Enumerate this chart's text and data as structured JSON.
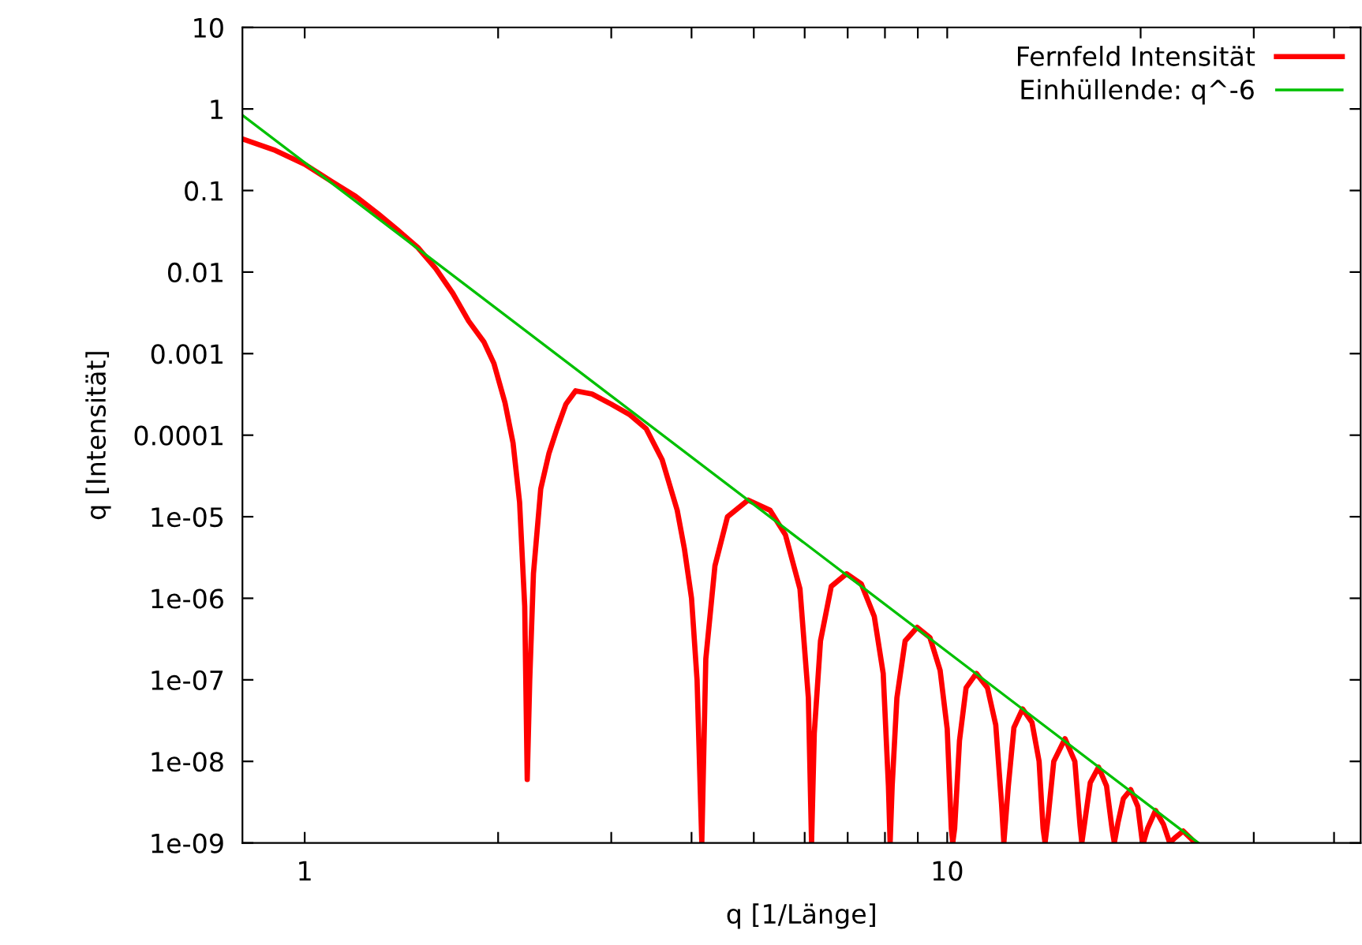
{
  "chart_data": {
    "type": "line",
    "xlabel": "q [1/Länge]",
    "ylabel": "q [Intensität]",
    "log": "xy",
    "grid": false,
    "legend": "top right",
    "marker": "none",
    "line_style": "solid",
    "xlim": [
      0.8,
      44
    ],
    "ylim": [
      1e-09,
      10
    ],
    "xticks": [
      1,
      {
        "value": 2,
        "label": null
      },
      {
        "value": 3,
        "label": null
      },
      {
        "value": 4,
        "label": null
      },
      {
        "value": 5,
        "label": null
      },
      {
        "value": 6,
        "label": null
      },
      {
        "value": 7,
        "label": null
      },
      {
        "value": 8,
        "label": null
      },
      {
        "value": 9,
        "label": null
      },
      10,
      {
        "value": 20,
        "label": null
      },
      {
        "value": 30,
        "label": null
      },
      {
        "value": 40,
        "label": null
      }
    ],
    "yticks": [
      {
        "value": 1e-09,
        "label": "1e-09"
      },
      {
        "value": 1e-08,
        "label": "1e-08"
      },
      {
        "value": 1e-07,
        "label": "1e-07"
      },
      {
        "value": 1e-06,
        "label": "1e-06"
      },
      {
        "value": 1e-05,
        "label": "1e-05"
      },
      0.0001,
      0.001,
      0.01,
      0.1,
      1,
      10
    ],
    "series": [
      {
        "name": "Fernfeld Intensität",
        "color": "#ff0000",
        "x": [
          0.8,
          0.9,
          1.0,
          1.1,
          1.2,
          1.3,
          1.4,
          1.5,
          1.6,
          1.7,
          1.8,
          1.9,
          1.97,
          2.05,
          2.11,
          2.16,
          2.2,
          2.22,
          2.24,
          2.27,
          2.33,
          2.4,
          2.47,
          2.55,
          2.64,
          2.8,
          3.0,
          3.2,
          3.4,
          3.6,
          3.8,
          3.9,
          4.0,
          4.08,
          4.15,
          4.21,
          4.35,
          4.55,
          4.9,
          5.3,
          5.6,
          5.9,
          6.08,
          6.15,
          6.21,
          6.35,
          6.6,
          6.97,
          7.35,
          7.7,
          7.95,
          8.1,
          8.15,
          8.21,
          8.35,
          8.6,
          8.98,
          9.4,
          9.75,
          10.0,
          10.15,
          10.2,
          10.27,
          10.45,
          10.7,
          11.1,
          11.55,
          11.9,
          12.15,
          12.25,
          12.45,
          12.7,
          13.1,
          13.55,
          13.9,
          14.1,
          14.2,
          14.35,
          14.65,
          15.25,
          15.8,
          16.1,
          16.2,
          16.4,
          16.7,
          17.2,
          17.7,
          18.05,
          18.2,
          18.45,
          18.8,
          19.3,
          19.8,
          20.1,
          20.2,
          20.5,
          21.1,
          21.7,
          22.2,
          22.6,
          23.3,
          23.9,
          24.3
        ],
        "values": [
          0.43,
          0.31,
          0.21,
          0.13,
          0.085,
          0.052,
          0.032,
          0.02,
          0.011,
          0.0055,
          0.0025,
          0.0014,
          0.00076,
          0.00025,
          8e-05,
          1.5e-05,
          8e-07,
          6e-09,
          1e-07,
          2e-06,
          2.2e-05,
          6e-05,
          0.00012,
          0.00024,
          0.00035,
          0.00032,
          0.00024,
          0.00018,
          0.00012,
          5e-05,
          1.2e-05,
          4e-06,
          1e-06,
          1e-07,
          1e-09,
          1.8e-07,
          2.5e-06,
          1e-05,
          1.6e-05,
          1.2e-05,
          6e-06,
          1.3e-06,
          6e-08,
          1e-09,
          2.2e-08,
          3e-07,
          1.4e-06,
          2e-06,
          1.5e-06,
          6e-07,
          1.2e-07,
          5e-09,
          1e-09,
          5e-09,
          6e-08,
          3e-07,
          4.4e-07,
          3.3e-07,
          1.3e-07,
          2.5e-08,
          1.5e-09,
          1e-09,
          1.5e-09,
          1.8e-08,
          8e-08,
          1.2e-07,
          8e-08,
          2.8e-08,
          3e-09,
          1e-09,
          5e-09,
          2.6e-08,
          4.4e-08,
          3e-08,
          1e-08,
          1.5e-09,
          1e-09,
          2e-09,
          1e-08,
          1.9e-08,
          1e-08,
          1.6e-09,
          1e-09,
          2e-09,
          5.5e-09,
          8.5e-09,
          5e-09,
          1.5e-09,
          1e-09,
          1.8e-09,
          3.5e-09,
          4.5e-09,
          2.8e-09,
          1.1e-09,
          1e-09,
          1.5e-09,
          2.5e-09,
          1.7e-09,
          1e-09,
          1.15e-09,
          1.4e-09,
          1.15e-09,
          1e-09
        ]
      },
      {
        "name": "Einhüllende: q^-6",
        "color": "#00c000",
        "x": [
          0.8,
          24.6
        ],
        "values": [
          0.84,
          1e-09
        ]
      }
    ]
  }
}
